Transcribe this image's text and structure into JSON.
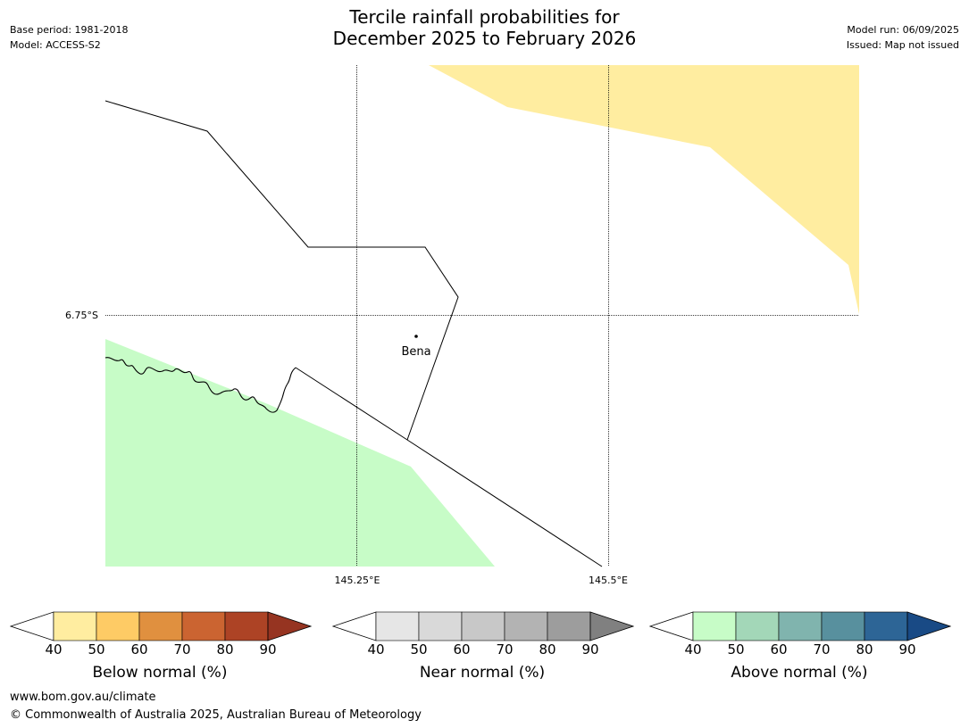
{
  "title": {
    "line1": "Tercile rainfall probabilities for",
    "line2": "December 2025 to February 2026"
  },
  "meta": {
    "base_period": "Base period: 1981-2018",
    "model": "Model: ACCESS-S2",
    "model_run": "Model run: 06/09/2025",
    "issued": "Issued: Map not issued"
  },
  "map": {
    "graticule": {
      "lat_label": "6.75°S",
      "lon_labels": [
        "145.25°E",
        "145.5°E"
      ]
    },
    "places": [
      {
        "name": "Bena"
      }
    ],
    "colors": {
      "below_normal_40_50": "#ffeda0",
      "above_normal_40_50": "#c7fcc7",
      "boundary": "#000000"
    }
  },
  "legends": [
    {
      "title": "Below normal (%)",
      "ticks": [
        "40",
        "50",
        "60",
        "70",
        "80",
        "90"
      ],
      "colors": [
        "#ffffff",
        "#ffeda0",
        "#fecb65",
        "#e0903f",
        "#cb6431",
        "#ad4325",
        "#963421"
      ]
    },
    {
      "title": "Near normal (%)",
      "ticks": [
        "40",
        "50",
        "60",
        "70",
        "80",
        "90"
      ],
      "colors": [
        "#ffffff",
        "#e6e6e6",
        "#d9d9d9",
        "#c8c8c8",
        "#b3b3b3",
        "#9d9d9d",
        "#808080"
      ]
    },
    {
      "title": "Above normal (%)",
      "ticks": [
        "40",
        "50",
        "60",
        "70",
        "80",
        "90"
      ],
      "colors": [
        "#ffffff",
        "#c7fcc7",
        "#a3d7b8",
        "#80b4ae",
        "#58909e",
        "#2d6596",
        "#194a85"
      ]
    }
  ],
  "footer": {
    "url": "www.bom.gov.au/climate",
    "copyright": "© Commonwealth of Australia 2025, Australian Bureau of Meteorology"
  }
}
